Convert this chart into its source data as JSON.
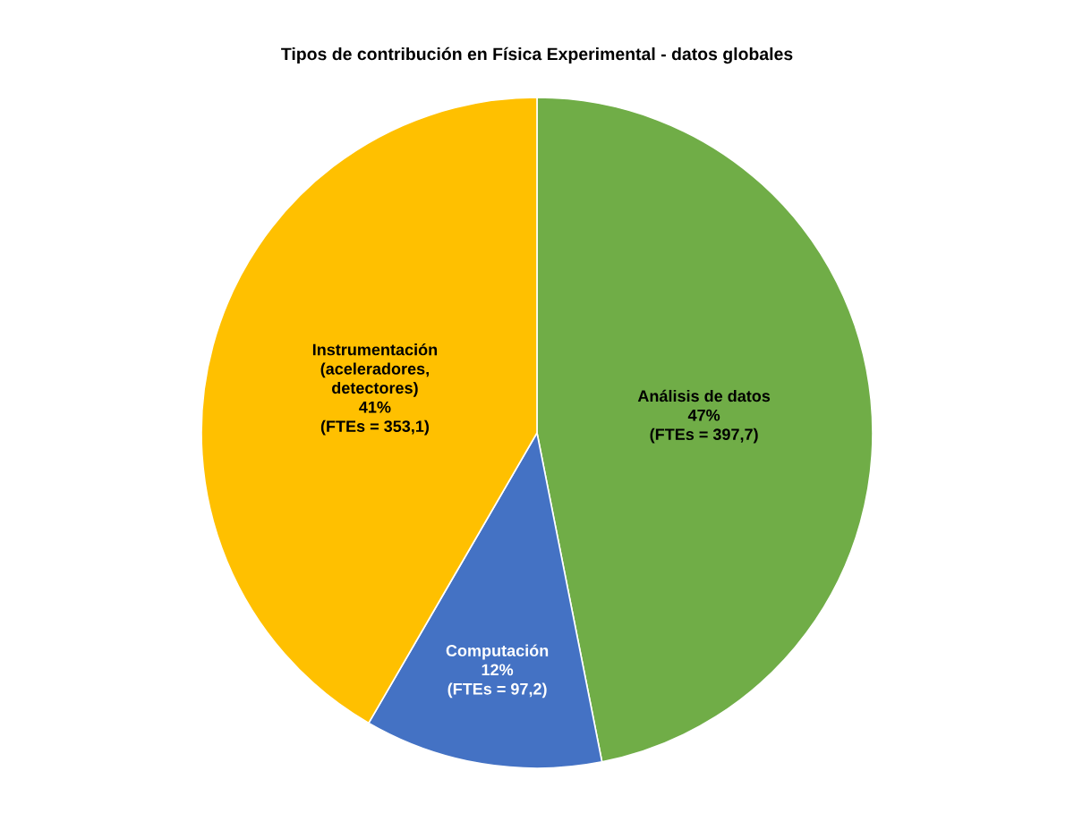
{
  "chart_data": {
    "type": "pie",
    "title": "Tipos de contribución en Física Experimental - datos globales",
    "categories": [
      "Análisis de datos",
      "Computación",
      "Instrumentación\n(aceleradores,\ndetectores)"
    ],
    "values": [
      397.7,
      97.2,
      353.1
    ],
    "colors": [
      "#70ad47",
      "#4472c4",
      "#ffc000"
    ],
    "value_labels": [
      "47%\n(FTEs = 397,7)",
      "12%\n(FTEs = 97,2)",
      "41%\n(FTEs = 353,1)"
    ],
    "legend": false
  }
}
